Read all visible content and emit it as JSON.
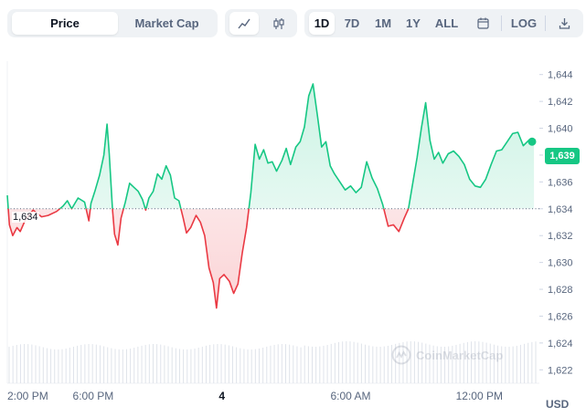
{
  "toolbar": {
    "metric_tabs": [
      {
        "label": "Price",
        "active": true
      },
      {
        "label": "Market Cap",
        "active": false
      }
    ],
    "chart_type_icons": [
      {
        "icon": "line-chart-icon",
        "active": true
      },
      {
        "icon": "candlestick-chart-icon",
        "active": false
      }
    ],
    "ranges": [
      {
        "label": "1D",
        "active": true
      },
      {
        "label": "7D",
        "active": false
      },
      {
        "label": "1M",
        "active": false
      },
      {
        "label": "1Y",
        "active": false
      },
      {
        "label": "ALL",
        "active": false
      }
    ],
    "calendar_icon": "calendar-icon",
    "log_label": "LOG",
    "download_icon": "download-icon"
  },
  "chart_data": {
    "type": "line",
    "title": "",
    "xlabel": "",
    "ylabel": "",
    "ylim": [
      1621,
      1645
    ],
    "y_ticks": [
      "1,622",
      "1,624",
      "1,626",
      "1,628",
      "1,630",
      "1,632",
      "1,634",
      "1,636",
      "1,638",
      "1,640",
      "1,642",
      "1,644"
    ],
    "x_ticks": [
      {
        "label": "2:00 PM",
        "bold": false
      },
      {
        "label": "6:00 PM",
        "bold": false
      },
      {
        "label": "4",
        "bold": true
      },
      {
        "label": "6:00 AM",
        "bold": false
      },
      {
        "label": "12:00 PM",
        "bold": false
      }
    ],
    "x_tick_hours": [
      0,
      4,
      10,
      16,
      22
    ],
    "x_range_hours": [
      0,
      24.8
    ],
    "baseline": 1634,
    "baseline_label": "1,634",
    "current_price": 1639,
    "current_price_label": "1,639",
    "colors": {
      "up": "#16c784",
      "down": "#ea3943",
      "baseline": "#58667e",
      "grid": "#eff2f5"
    },
    "series": [
      {
        "name": "Price",
        "points": [
          [
            0.0,
            1635.0
          ],
          [
            0.1,
            1632.8
          ],
          [
            0.25,
            1632.0
          ],
          [
            0.45,
            1632.6
          ],
          [
            0.6,
            1632.3
          ],
          [
            0.85,
            1633.2
          ],
          [
            1.2,
            1633.9
          ],
          [
            1.6,
            1633.4
          ],
          [
            1.9,
            1633.5
          ],
          [
            2.3,
            1633.8
          ],
          [
            2.6,
            1634.2
          ],
          [
            2.8,
            1634.6
          ],
          [
            3.0,
            1634.0
          ],
          [
            3.3,
            1634.8
          ],
          [
            3.6,
            1634.5
          ],
          [
            3.8,
            1633.1
          ],
          [
            3.9,
            1634.4
          ],
          [
            4.1,
            1635.4
          ],
          [
            4.3,
            1636.5
          ],
          [
            4.5,
            1638.0
          ],
          [
            4.65,
            1640.3
          ],
          [
            4.75,
            1638.1
          ],
          [
            4.9,
            1634.0
          ],
          [
            5.0,
            1632.1
          ],
          [
            5.15,
            1631.3
          ],
          [
            5.3,
            1633.3
          ],
          [
            5.5,
            1634.5
          ],
          [
            5.7,
            1635.9
          ],
          [
            5.9,
            1635.6
          ],
          [
            6.1,
            1635.3
          ],
          [
            6.3,
            1634.7
          ],
          [
            6.45,
            1633.9
          ],
          [
            6.6,
            1634.8
          ],
          [
            6.8,
            1635.3
          ],
          [
            7.0,
            1636.6
          ],
          [
            7.2,
            1636.2
          ],
          [
            7.4,
            1637.2
          ],
          [
            7.6,
            1636.5
          ],
          [
            7.8,
            1634.8
          ],
          [
            8.0,
            1634.6
          ],
          [
            8.2,
            1633.3
          ],
          [
            8.35,
            1632.2
          ],
          [
            8.55,
            1632.6
          ],
          [
            8.8,
            1633.5
          ],
          [
            9.0,
            1633.0
          ],
          [
            9.2,
            1632.0
          ],
          [
            9.4,
            1629.6
          ],
          [
            9.6,
            1628.5
          ],
          [
            9.75,
            1626.6
          ],
          [
            9.9,
            1628.8
          ],
          [
            10.1,
            1629.1
          ],
          [
            10.35,
            1628.6
          ],
          [
            10.55,
            1627.7
          ],
          [
            10.75,
            1628.4
          ],
          [
            10.95,
            1630.7
          ],
          [
            11.15,
            1632.6
          ],
          [
            11.35,
            1635.2
          ],
          [
            11.55,
            1638.8
          ],
          [
            11.75,
            1637.7
          ],
          [
            11.95,
            1638.4
          ],
          [
            12.15,
            1637.4
          ],
          [
            12.35,
            1637.5
          ],
          [
            12.55,
            1636.8
          ],
          [
            12.8,
            1637.6
          ],
          [
            13.0,
            1638.5
          ],
          [
            13.2,
            1637.3
          ],
          [
            13.45,
            1638.6
          ],
          [
            13.65,
            1639.0
          ],
          [
            13.85,
            1640.1
          ],
          [
            14.05,
            1642.4
          ],
          [
            14.25,
            1643.3
          ],
          [
            14.45,
            1641.0
          ],
          [
            14.65,
            1638.6
          ],
          [
            14.85,
            1639.0
          ],
          [
            15.05,
            1637.2
          ],
          [
            15.25,
            1636.6
          ],
          [
            15.5,
            1636.0
          ],
          [
            15.75,
            1635.4
          ],
          [
            16.0,
            1635.7
          ],
          [
            16.25,
            1635.2
          ],
          [
            16.5,
            1635.6
          ],
          [
            16.75,
            1637.5
          ],
          [
            17.0,
            1636.3
          ],
          [
            17.25,
            1635.5
          ],
          [
            17.5,
            1634.3
          ],
          [
            17.75,
            1632.7
          ],
          [
            18.0,
            1632.8
          ],
          [
            18.25,
            1632.3
          ],
          [
            18.5,
            1633.3
          ],
          [
            18.7,
            1634.0
          ],
          [
            18.9,
            1635.9
          ],
          [
            19.1,
            1637.8
          ],
          [
            19.3,
            1640.0
          ],
          [
            19.5,
            1641.9
          ],
          [
            19.7,
            1639.1
          ],
          [
            19.9,
            1637.7
          ],
          [
            20.1,
            1638.2
          ],
          [
            20.3,
            1637.4
          ],
          [
            20.55,
            1638.1
          ],
          [
            20.8,
            1638.3
          ],
          [
            21.05,
            1637.9
          ],
          [
            21.3,
            1637.3
          ],
          [
            21.55,
            1636.2
          ],
          [
            21.8,
            1635.7
          ],
          [
            22.05,
            1635.6
          ],
          [
            22.3,
            1636.2
          ],
          [
            22.55,
            1637.3
          ],
          [
            22.8,
            1638.3
          ],
          [
            23.05,
            1638.4
          ],
          [
            23.3,
            1639.0
          ],
          [
            23.55,
            1639.6
          ],
          [
            23.8,
            1639.7
          ],
          [
            24.05,
            1638.7
          ],
          [
            24.3,
            1639.1
          ],
          [
            24.55,
            1639.0
          ]
        ]
      }
    ],
    "volume_ticks_count": 140,
    "watermark_label": "CoinMarketCap",
    "currency_label": "USD"
  }
}
